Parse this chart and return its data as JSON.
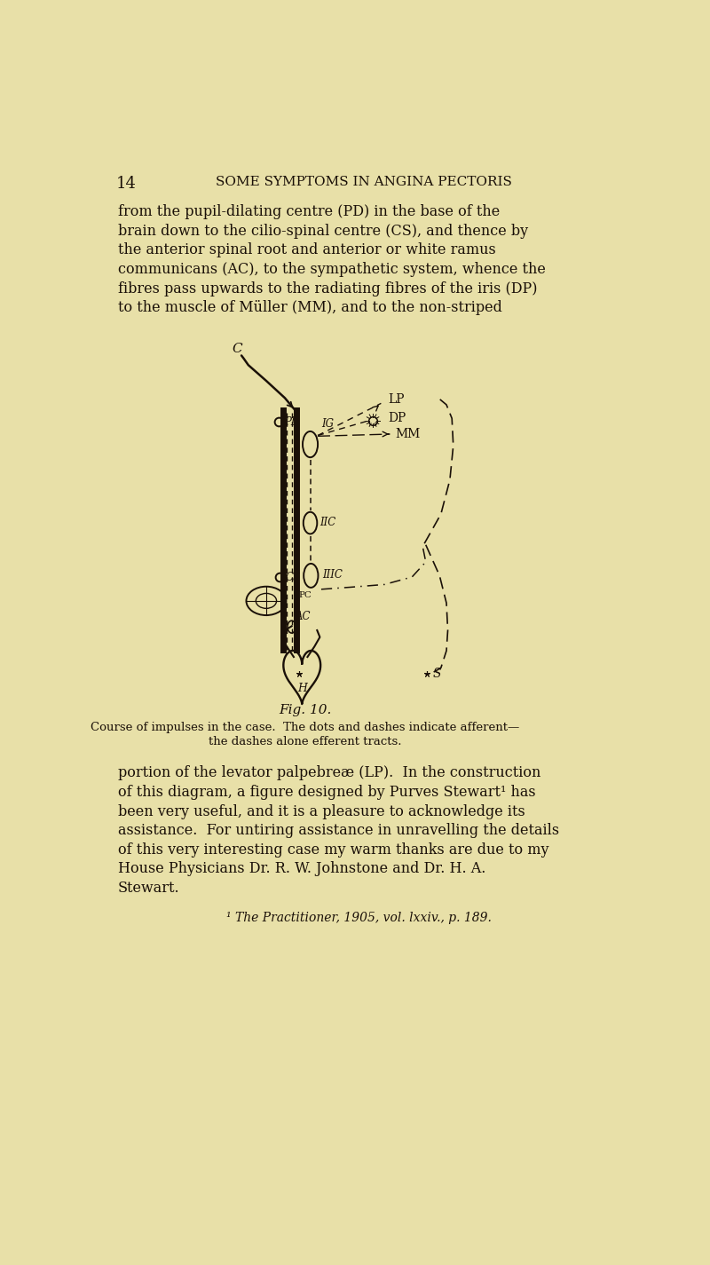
{
  "bg_color": "#e8e0a8",
  "page_num": "14",
  "header": "SOME SYMPTOMS IN ANGINA PECTORIS",
  "text_color": "#1a1008",
  "top_lines": [
    "from the pupil-dilating centre (PD) in the base of the",
    "brain down to the cilio-spinal centre (CS), and thence by",
    "the anterior spinal root and anterior or white ramus",
    "communicans (AC), to the sympathetic system, whence the",
    "fibres pass upwards to the radiating fibres of the iris (DP)",
    "to the muscle of Müller (MM), and to the non-striped"
  ],
  "fig_caption_title": "Fig. 10.",
  "fig_caption_line1": "Course of impulses in the case.  The dots and dashes indicate afferent—",
  "fig_caption_line2": "the dashes alone efferent tracts.",
  "bottom_lines": [
    "portion of the levator palpebreæ (LP).  In the construction",
    "of this diagram, a figure designed by Purves Stewart¹ has",
    "been very useful, and it is a pleasure to acknowledge its",
    "assistance.  For untiring assistance in unravelling the details",
    "of this very interesting case my warm thanks are due to my",
    "House Physicians Dr. R. W. Johnstone and Dr. H. A.",
    "Stewart."
  ],
  "footnote": "¹ The Practitioner, 1905, vol. lxxiv., p. 189."
}
